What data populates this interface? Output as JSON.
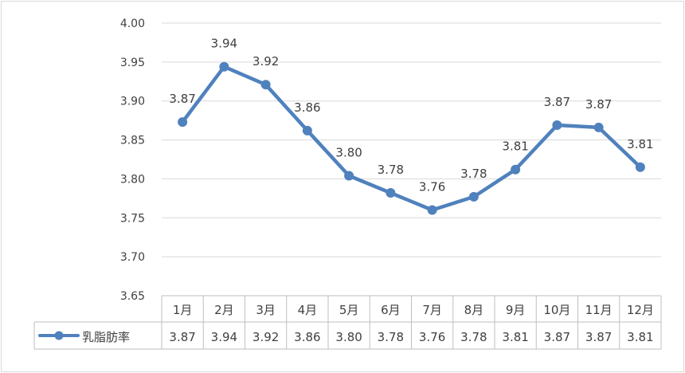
{
  "chart_data": {
    "type": "line",
    "title": "",
    "xlabel": "",
    "ylabel": "",
    "categories": [
      "1月",
      "2月",
      "3月",
      "4月",
      "5月",
      "6月",
      "7月",
      "8月",
      "9月",
      "10月",
      "11月",
      "12月"
    ],
    "series": [
      {
        "name": "乳脂肪率",
        "values": [
          3.873,
          3.944,
          3.921,
          3.862,
          3.804,
          3.782,
          3.76,
          3.777,
          3.812,
          3.869,
          3.866,
          3.815
        ],
        "labels": [
          "3.87",
          "3.94",
          "3.92",
          "3.86",
          "3.80",
          "3.78",
          "3.76",
          "3.78",
          "3.81",
          "3.87",
          "3.87",
          "3.81"
        ],
        "color": "#4f81bd"
      }
    ],
    "yticks": [
      "4.00",
      "3.95",
      "3.90",
      "3.85",
      "3.80",
      "3.75",
      "3.70",
      "3.65"
    ],
    "ylim": [
      3.65,
      4.0
    ],
    "grid": true,
    "legend": "data-table-left"
  }
}
